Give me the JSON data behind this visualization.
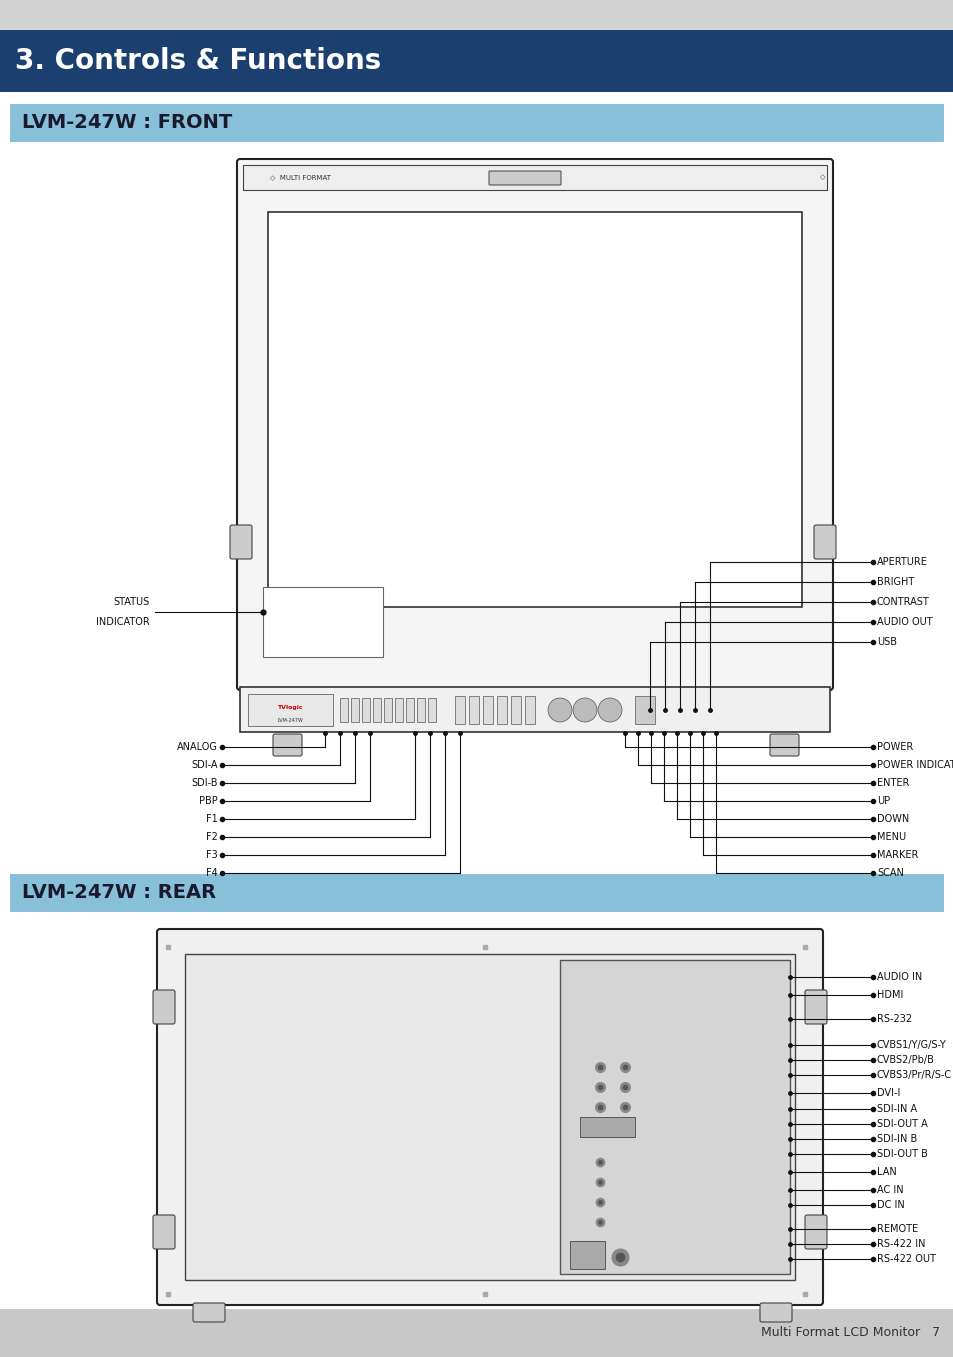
{
  "page_bg": "#ffffff",
  "header_top_bg": "#d3d3d3",
  "title_bg": "#1b3f6e",
  "title_text": "3. Controls & Functions",
  "title_color": "#ffffff",
  "title_fontsize": 20,
  "section1_bg": "#87c0d8",
  "section1_text": "LVM-247W : FRONT",
  "section2_bg": "#87c0d8",
  "section2_text": "LVM-247W : REAR",
  "section_text_color": "#1a1a2e",
  "section_fontsize": 14,
  "footer_bg": "#c8c8c8",
  "footer_text": "Multi Format LCD Monitor   7",
  "footer_fontsize": 9,
  "line_color": "#111111",
  "dot_color": "#111111",
  "label_fontsize": 7,
  "front_right_labels": [
    "APERTURE",
    "BRIGHT",
    "CONTRAST",
    "AUDIO OUT",
    "USB"
  ],
  "front_left_labels": [
    "ANALOG",
    "SDI-A",
    "SDI-B",
    "PBP",
    "F1",
    "F2",
    "F3",
    "F4"
  ],
  "front_right2_labels": [
    "POWER",
    "POWER INDICATOR",
    "ENTER",
    "UP",
    "DOWN",
    "MENU",
    "MARKER",
    "SCAN"
  ],
  "rear_right_labels": [
    "AUDIO IN",
    "HDMI",
    "RS-232",
    "CVBS1/Y/G/S-Y",
    "CVBS2/Pb/B",
    "CVBS3/Pr/R/S-C",
    "DVI-I",
    "SDI-IN A",
    "SDI-OUT A",
    "SDI-IN B",
    "SDI-OUT B",
    "LAN",
    "AC IN",
    "DC IN",
    "REMOTE",
    "RS-422 IN",
    "RS-422 OUT"
  ]
}
